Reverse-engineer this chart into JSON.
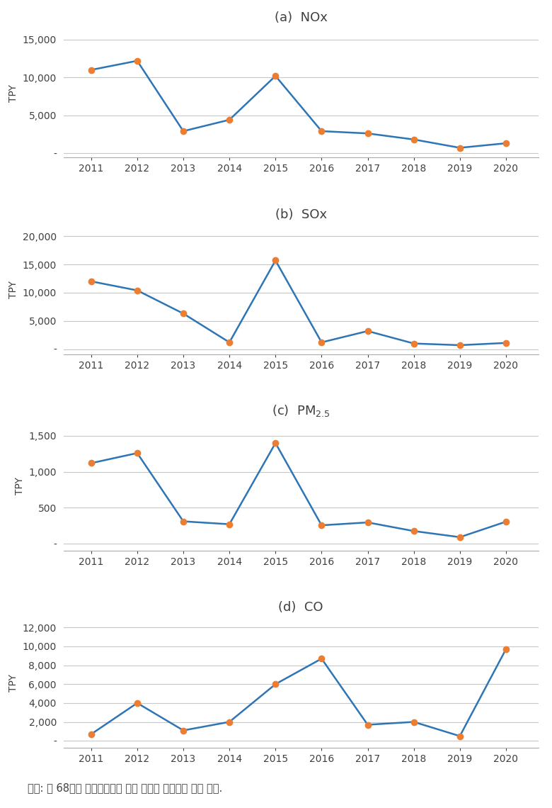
{
  "years": [
    2011,
    2012,
    2013,
    2014,
    2015,
    2016,
    2017,
    2018,
    2019,
    2020
  ],
  "NOx": [
    11000,
    12200,
    2900,
    4400,
    10200,
    2900,
    2600,
    1800,
    700,
    1300
  ],
  "SOx": [
    12000,
    10400,
    6300,
    1200,
    15700,
    1200,
    3200,
    1000,
    700,
    1100
  ],
  "PM25": [
    1120,
    1260,
    310,
    270,
    1400,
    255,
    295,
    175,
    90,
    305
  ],
  "CO": [
    700,
    4000,
    1100,
    2000,
    6000,
    8700,
    1700,
    2000,
    500,
    9700
  ],
  "line_color": "#2e75b6",
  "marker_color": "#ed7d31",
  "marker_style": "o",
  "marker_size": 6,
  "line_width": 1.8,
  "ylabel": "TPY",
  "NOx_yticks": [
    0,
    5000,
    10000,
    15000
  ],
  "NOx_ylim": [
    -600,
    16500
  ],
  "SOx_yticks": [
    0,
    5000,
    10000,
    15000,
    20000
  ],
  "SOx_ylim": [
    -900,
    22000
  ],
  "PM25_yticks": [
    0,
    500,
    1000,
    1500
  ],
  "PM25_ylim": [
    -100,
    1700
  ],
  "CO_yticks": [
    0,
    2000,
    4000,
    6000,
    8000,
    10000,
    12000
  ],
  "CO_ylim": [
    -700,
    13000
  ],
  "footnote": "자료: 열 68건의 환경영향평가 협의 실적을 바탕으로 저자 작성.",
  "background_color": "#ffffff",
  "grid_color": "#c8c8c8",
  "tick_label_color": "#404040",
  "title_color": "#404040",
  "titles_plain": [
    "(a)  NOx",
    "(b)  SOx",
    "(c)  PM",
    "(d)  CO"
  ]
}
